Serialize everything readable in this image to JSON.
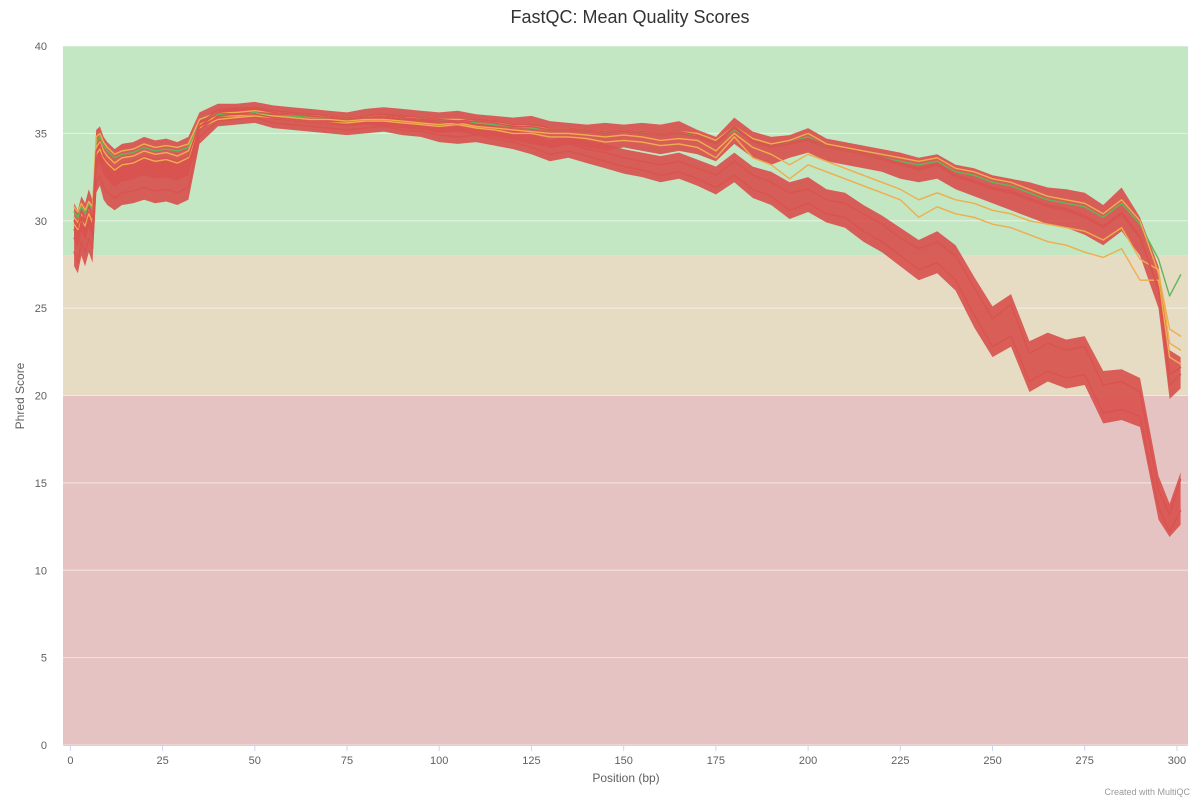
{
  "chart_data": {
    "type": "line",
    "title": "FastQC: Mean Quality Scores",
    "xlabel": "Position (bp)",
    "ylabel": "Phred Score",
    "xlim": [
      -2,
      303
    ],
    "ylim": [
      0,
      40
    ],
    "x_ticks": [
      0,
      25,
      50,
      75,
      100,
      125,
      150,
      175,
      200,
      225,
      250,
      275,
      300
    ],
    "y_ticks": [
      0,
      5,
      10,
      15,
      20,
      25,
      30,
      35,
      40
    ],
    "grid": true,
    "legend": "none",
    "bands": [
      {
        "from": 28,
        "to": 40,
        "color": "#c3e6c3"
      },
      {
        "from": 20,
        "to": 28,
        "color": "#e6dcc3"
      },
      {
        "from": 0,
        "to": 20,
        "color": "#e6c3c3"
      }
    ],
    "status_colors": {
      "pass": "#5cb85c",
      "warn": "#f0ad4e",
      "fail": "#d9534f"
    },
    "x": [
      1,
      2,
      3,
      4,
      5,
      6,
      7,
      8,
      9,
      10,
      12,
      14,
      17,
      20,
      23,
      26,
      29,
      32,
      35,
      40,
      45,
      50,
      55,
      60,
      65,
      70,
      75,
      80,
      85,
      90,
      95,
      100,
      105,
      110,
      115,
      120,
      125,
      130,
      135,
      140,
      145,
      150,
      155,
      160,
      165,
      170,
      175,
      180,
      185,
      190,
      195,
      200,
      205,
      210,
      215,
      220,
      225,
      230,
      235,
      240,
      245,
      250,
      255,
      260,
      265,
      270,
      275,
      280,
      285,
      290,
      295,
      298,
      301
    ],
    "series": [
      {
        "status": "pass",
        "values": [
          30.5,
          30.2,
          30.8,
          30.4,
          31.0,
          30.6,
          34.5,
          34.8,
          34.3,
          34.0,
          33.6,
          33.8,
          33.9,
          34.2,
          34.0,
          34.1,
          34.0,
          34.2,
          35.8,
          36.1,
          36.0,
          36.2,
          36.0,
          36.0,
          35.9,
          35.9,
          35.8,
          35.9,
          36.0,
          35.9,
          35.8,
          35.7,
          35.8,
          35.6,
          35.5,
          35.4,
          35.3,
          35.2,
          35.2,
          35.1,
          35.0,
          35.1,
          35.0,
          34.9,
          35.0,
          34.9,
          34.5,
          35.2,
          34.6,
          34.3,
          34.5,
          34.8,
          34.2,
          34.0,
          33.8,
          33.6,
          33.4,
          33.2,
          33.4,
          32.8,
          32.6,
          32.2,
          32.0,
          31.6,
          31.2,
          31.0,
          30.8,
          30.2,
          31.0,
          29.8,
          27.8,
          25.7,
          26.9
        ]
      },
      {
        "status": "warn",
        "values": [
          30.8,
          30.5,
          31.0,
          30.6,
          31.1,
          30.8,
          34.8,
          35.0,
          34.5,
          34.2,
          33.8,
          34.0,
          34.1,
          34.4,
          34.2,
          34.3,
          34.2,
          34.4,
          35.8,
          36.2,
          36.2,
          36.3,
          36.2,
          36.1,
          36.0,
          36.0,
          35.9,
          36.0,
          36.0,
          35.9,
          35.9,
          35.8,
          35.8,
          35.7,
          35.6,
          35.5,
          35.4,
          35.3,
          35.3,
          35.2,
          35.1,
          35.2,
          35.1,
          35.0,
          35.1,
          35.0,
          34.6,
          35.4,
          34.7,
          34.4,
          34.6,
          35.0,
          34.4,
          34.2,
          34.0,
          33.8,
          33.6,
          33.4,
          33.6,
          33.0,
          32.8,
          32.4,
          32.2,
          31.8,
          31.4,
          31.2,
          31.0,
          30.4,
          31.2,
          30.0,
          27.0,
          23.8,
          23.4
        ]
      },
      {
        "status": "warn",
        "values": [
          29.8,
          29.5,
          30.0,
          29.7,
          30.4,
          29.9,
          33.8,
          34.1,
          33.6,
          33.3,
          32.9,
          33.2,
          33.3,
          33.6,
          33.4,
          33.5,
          33.3,
          33.6,
          35.3,
          35.8,
          35.9,
          36.0,
          35.9,
          35.8,
          35.7,
          35.6,
          35.6,
          35.7,
          35.7,
          35.6,
          35.5,
          35.4,
          35.5,
          35.3,
          35.2,
          35.0,
          35.0,
          34.8,
          34.8,
          34.7,
          34.5,
          34.6,
          34.5,
          34.3,
          34.4,
          34.2,
          33.6,
          34.8,
          33.6,
          33.2,
          32.4,
          33.2,
          32.8,
          32.4,
          32.0,
          31.6,
          31.2,
          30.2,
          30.8,
          30.4,
          30.2,
          29.8,
          29.6,
          29.2,
          28.8,
          28.6,
          28.2,
          27.9,
          28.4,
          26.6,
          26.6,
          22.2,
          21.8
        ]
      },
      {
        "status": "warn",
        "values": [
          30.2,
          29.9,
          30.4,
          30.1,
          30.7,
          30.3,
          34.2,
          34.5,
          34.0,
          33.7,
          33.3,
          33.6,
          33.7,
          34.0,
          33.8,
          33.9,
          33.7,
          34.0,
          35.5,
          36.0,
          36.0,
          36.1,
          36.0,
          35.9,
          35.8,
          35.8,
          35.7,
          35.8,
          35.8,
          35.7,
          35.6,
          35.5,
          35.6,
          35.4,
          35.3,
          35.2,
          35.1,
          35.0,
          35.0,
          34.9,
          34.8,
          34.9,
          34.8,
          34.6,
          34.7,
          34.6,
          34.0,
          35.0,
          34.2,
          33.8,
          33.2,
          33.8,
          33.4,
          33.0,
          32.6,
          32.2,
          31.8,
          31.2,
          31.6,
          31.2,
          31.0,
          30.6,
          30.4,
          30.0,
          29.8,
          29.6,
          29.4,
          28.9,
          29.6,
          27.8,
          27.2,
          23.0,
          22.6
        ]
      },
      {
        "status": "fail",
        "values": [
          29.5,
          29.0,
          30.0,
          29.4,
          30.2,
          29.6,
          33.5,
          33.9,
          33.2,
          32.9,
          32.5,
          32.8,
          32.9,
          33.2,
          33.0,
          33.1,
          32.9,
          33.2,
          35.4,
          36.2,
          36.3,
          36.4,
          36.2,
          36.1,
          36.0,
          35.9,
          35.8,
          35.9,
          36.0,
          35.9,
          35.8,
          35.7,
          35.6,
          35.7,
          35.6,
          35.4,
          35.4,
          35.2,
          35.2,
          35.1,
          35.0,
          35.1,
          35.0,
          34.9,
          35.0,
          34.8,
          34.4,
          35.3,
          34.5,
          34.2,
          34.4,
          34.6,
          34.2,
          34.0,
          33.8,
          33.5,
          33.2,
          32.9,
          33.2,
          32.5,
          32.2,
          31.8,
          31.6,
          31.2,
          30.8,
          30.6,
          30.2,
          29.6,
          30.4,
          29.0,
          26.2,
          21.2,
          21.6
        ]
      },
      {
        "status": "fail",
        "values": [
          29.0,
          28.6,
          29.6,
          29.0,
          29.8,
          29.2,
          33.0,
          33.4,
          32.7,
          32.4,
          32.0,
          32.3,
          32.4,
          32.7,
          32.5,
          32.6,
          32.4,
          32.7,
          35.2,
          36.0,
          36.1,
          36.1,
          35.9,
          35.8,
          35.7,
          35.6,
          35.5,
          35.6,
          35.6,
          35.5,
          35.4,
          35.2,
          35.1,
          35.2,
          35.0,
          34.8,
          34.6,
          34.2,
          34.4,
          34.1,
          33.9,
          33.6,
          33.4,
          33.2,
          33.4,
          33.0,
          32.6,
          33.4,
          32.6,
          32.2,
          31.6,
          31.8,
          31.2,
          31.0,
          30.4,
          29.8,
          29.0,
          28.4,
          28.8,
          28.0,
          26.2,
          24.4,
          25.2,
          22.4,
          23.0,
          22.6,
          22.8,
          20.6,
          20.8,
          20.2,
          14.6,
          13.2,
          15.2
        ]
      },
      {
        "status": "fail",
        "values": [
          28.2,
          27.6,
          28.8,
          28.2,
          29.0,
          28.4,
          32.2,
          32.6,
          31.9,
          31.6,
          31.3,
          31.6,
          31.7,
          31.9,
          31.7,
          31.8,
          31.6,
          31.9,
          34.8,
          35.7,
          35.8,
          35.9,
          35.6,
          35.5,
          35.4,
          35.3,
          35.2,
          35.3,
          35.4,
          35.2,
          35.1,
          34.9,
          34.8,
          34.9,
          34.7,
          34.5,
          34.2,
          33.8,
          34.0,
          33.7,
          33.4,
          33.1,
          32.9,
          32.6,
          32.8,
          32.4,
          31.9,
          32.6,
          31.8,
          31.4,
          30.6,
          31.0,
          30.4,
          30.2,
          29.4,
          28.8,
          28.0,
          27.2,
          27.6,
          26.6,
          24.6,
          22.8,
          23.4,
          20.8,
          21.4,
          21.0,
          21.2,
          19.0,
          19.2,
          18.8,
          13.6,
          12.2,
          13.4
        ]
      },
      {
        "status": "fail",
        "values": [
          30.0,
          29.6,
          30.6,
          30.0,
          30.8,
          30.2,
          34.0,
          34.4,
          33.7,
          33.4,
          33.0,
          33.3,
          33.4,
          33.7,
          33.5,
          33.6,
          33.4,
          33.7,
          35.6,
          36.3,
          36.4,
          36.5,
          36.3,
          36.2,
          36.1,
          36.0,
          35.9,
          36.0,
          36.1,
          36.0,
          35.9,
          35.8,
          35.7,
          35.8,
          35.7,
          35.5,
          35.5,
          35.3,
          35.3,
          35.2,
          35.1,
          35.2,
          35.1,
          35.0,
          35.1,
          34.9,
          34.5,
          35.4,
          34.6,
          34.3,
          34.5,
          34.7,
          34.3,
          34.1,
          33.9,
          33.6,
          33.3,
          33.0,
          33.3,
          32.6,
          32.3,
          31.9,
          31.7,
          31.3,
          30.9,
          30.7,
          30.3,
          29.7,
          30.5,
          29.1,
          26.0,
          20.6,
          21.2
        ]
      }
    ],
    "fill_bands": [
      {
        "status": "fail",
        "upper": [
          31.0,
          30.6,
          31.4,
          31.0,
          31.8,
          31.2,
          35.2,
          35.4,
          34.8,
          34.5,
          34.1,
          34.4,
          34.5,
          34.8,
          34.6,
          34.7,
          34.5,
          34.8,
          36.2,
          36.7,
          36.7,
          36.8,
          36.6,
          36.5,
          36.4,
          36.3,
          36.2,
          36.4,
          36.5,
          36.4,
          36.3,
          36.2,
          36.3,
          36.1,
          36.0,
          35.9,
          36.0,
          35.7,
          35.6,
          35.5,
          35.6,
          35.5,
          35.6,
          35.5,
          35.7,
          35.2,
          34.8,
          35.9,
          35.1,
          34.8,
          34.9,
          35.3,
          34.7,
          34.5,
          34.3,
          34.1,
          33.9,
          33.6,
          33.8,
          33.2,
          33.0,
          32.6,
          32.4,
          32.2,
          31.9,
          31.8,
          31.6,
          30.9,
          31.9,
          30.2,
          27.4,
          22.6,
          22.2
        ],
        "lower": [
          29.0,
          28.6,
          29.4,
          29.0,
          29.6,
          29.1,
          33.2,
          33.4,
          32.8,
          32.4,
          32.0,
          32.3,
          32.4,
          32.6,
          32.4,
          32.5,
          32.3,
          32.6,
          35.2,
          35.8,
          35.9,
          36.0,
          35.8,
          35.7,
          35.6,
          35.5,
          35.4,
          35.5,
          35.4,
          35.3,
          35.2,
          35.0,
          35.1,
          34.9,
          34.8,
          34.6,
          34.4,
          34.2,
          34.4,
          34.2,
          34.0,
          34.2,
          34.0,
          33.8,
          34.0,
          33.8,
          33.4,
          34.4,
          33.6,
          33.2,
          33.6,
          33.9,
          33.4,
          33.2,
          33.0,
          32.8,
          32.4,
          32.2,
          32.4,
          31.8,
          31.4,
          31.0,
          30.6,
          30.2,
          29.8,
          29.6,
          29.2,
          28.6,
          29.4,
          28.0,
          25.0,
          19.8,
          20.4
        ]
      },
      {
        "status": "fail",
        "upper": [
          30.2,
          29.8,
          30.6,
          30.2,
          31.0,
          30.4,
          34.0,
          34.4,
          33.6,
          33.3,
          32.9,
          33.2,
          33.3,
          33.6,
          33.4,
          33.5,
          33.3,
          33.6,
          35.8,
          36.4,
          36.5,
          36.5,
          36.2,
          36.1,
          36.0,
          35.9,
          35.8,
          35.9,
          36.0,
          35.9,
          35.8,
          35.6,
          35.5,
          35.6,
          35.4,
          35.2,
          35.0,
          34.6,
          34.9,
          34.6,
          34.4,
          34.1,
          33.9,
          33.7,
          33.9,
          33.5,
          33.1,
          33.9,
          33.1,
          32.8,
          32.2,
          32.5,
          31.8,
          31.6,
          30.9,
          30.3,
          29.6,
          28.9,
          29.4,
          28.6,
          26.8,
          25.1,
          25.8,
          23.1,
          23.6,
          23.2,
          23.4,
          21.4,
          21.5,
          21.0,
          15.4,
          13.8,
          15.6
        ],
        "lower": [
          27.4,
          27.0,
          28.0,
          27.4,
          28.2,
          27.6,
          31.6,
          32.0,
          31.2,
          30.9,
          30.6,
          30.9,
          31.0,
          31.2,
          31.0,
          31.1,
          30.9,
          31.2,
          34.4,
          35.4,
          35.5,
          35.6,
          35.3,
          35.2,
          35.1,
          35.0,
          34.9,
          35.0,
          35.1,
          34.9,
          34.8,
          34.5,
          34.4,
          34.5,
          34.3,
          34.1,
          33.8,
          33.4,
          33.6,
          33.3,
          33.0,
          32.7,
          32.5,
          32.2,
          32.4,
          32.0,
          31.5,
          32.2,
          31.3,
          30.9,
          30.1,
          30.5,
          29.9,
          29.6,
          28.8,
          28.2,
          27.4,
          26.6,
          27.0,
          26.0,
          23.9,
          22.2,
          22.8,
          20.2,
          20.8,
          20.4,
          20.6,
          18.4,
          18.6,
          18.2,
          12.9,
          11.9,
          12.6
        ]
      }
    ],
    "credit": "Created with MultiQC"
  }
}
